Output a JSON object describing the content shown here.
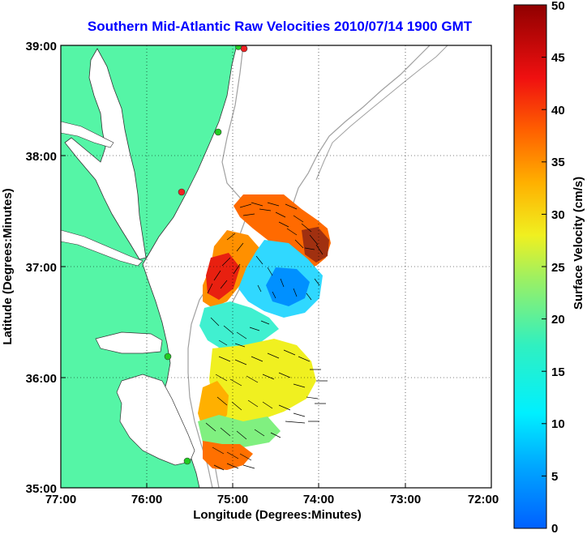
{
  "title": "Southern Mid-Atlantic Raw Velocities 2010/07/14 1900 GMT",
  "map": {
    "xlabel": "Longitude (Degrees:Minutes)",
    "ylabel": "Latitude (Degrees:Minutes)",
    "x_ticks": [
      "77:00",
      "76:00",
      "75:00",
      "74:00",
      "73:00",
      "72:00"
    ],
    "y_ticks": [
      "39:00",
      "38:00",
      "37:00",
      "36:00",
      "35:00"
    ],
    "lon_range": [
      -77,
      -72
    ],
    "lat_range": [
      35,
      39
    ],
    "grid": "dotted",
    "colors": {
      "land": "#55f5a6",
      "water": "#ffffff",
      "bathymetry": "#a0a0a0",
      "arrows": "#000000",
      "site_green": "#22cc22",
      "site_red": "#ee2222"
    }
  },
  "colorbar": {
    "label": "Surface Velocity (cm/s)",
    "ticks": [
      "50",
      "45",
      "40",
      "35",
      "30",
      "25",
      "20",
      "15",
      "10",
      "5",
      "0"
    ],
    "range": [
      0,
      50
    ],
    "colormap": "jet"
  }
}
